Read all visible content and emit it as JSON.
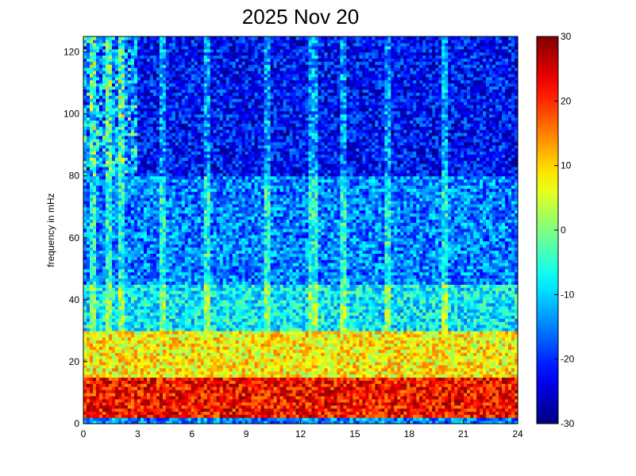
{
  "chart_data": {
    "type": "heatmap",
    "title": "2025 Nov 20",
    "xlabel": "",
    "ylabel": "frequency in mHz",
    "xlim": [
      0,
      24
    ],
    "ylim": [
      0,
      125
    ],
    "x_ticks": [
      "0",
      "3",
      "6",
      "9",
      "12",
      "15",
      "18",
      "21",
      "24"
    ],
    "y_ticks": [
      "0",
      "20",
      "40",
      "60",
      "80",
      "100",
      "120"
    ],
    "colorbar": {
      "range": [
        -30,
        30
      ],
      "ticks": [
        "30",
        "20",
        "10",
        "0",
        "-10",
        "-20",
        "-30"
      ],
      "colormap": "jet"
    },
    "bands": [
      {
        "freq_range": [
          0,
          2
        ],
        "level": -15
      },
      {
        "freq_range": [
          2,
          15
        ],
        "level": 22
      },
      {
        "freq_range": [
          15,
          30
        ],
        "level": 8
      },
      {
        "freq_range": [
          30,
          45
        ],
        "level": -8
      },
      {
        "freq_range": [
          45,
          80
        ],
        "level": -15
      },
      {
        "freq_range": [
          80,
          125
        ],
        "level": -22
      }
    ],
    "vertical_streaks_hours": [
      0.6,
      1.4,
      2.1,
      4.3,
      6.8,
      10.2,
      12.7,
      14.3,
      16.9,
      19.9
    ],
    "grid": false
  }
}
